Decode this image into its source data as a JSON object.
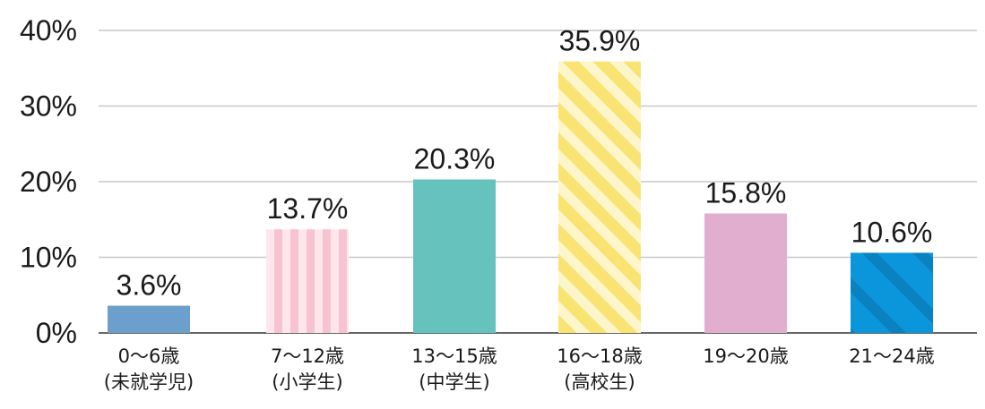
{
  "chart_data": {
    "type": "bar",
    "categories": [
      [
        "0〜6歳",
        "(未就学児)"
      ],
      [
        "7〜12歳",
        "(小学生)"
      ],
      [
        "13〜15歳",
        "(中学生)"
      ],
      [
        "16〜18歳",
        "(高校生)"
      ],
      [
        "19〜20歳"
      ],
      [
        "21〜24歳"
      ]
    ],
    "values": [
      3.6,
      13.7,
      20.3,
      35.9,
      15.8,
      10.6
    ],
    "value_labels": [
      "3.6%",
      "13.7%",
      "20.3%",
      "35.9%",
      "15.8%",
      "10.6%"
    ],
    "yticks": [
      "0%",
      "10%",
      "20%",
      "30%",
      "40%"
    ],
    "ylim": [
      0,
      40
    ],
    "grid": true,
    "title": "",
    "xlabel": "",
    "ylabel": "",
    "colors": {
      "bars": [
        "#6c9fcb",
        "#f8c3d0",
        "#66c2bd",
        "#f9e373",
        "#e2aed0",
        "#0b96dc"
      ],
      "bar_patterns": [
        "solid",
        "vertical-stripes",
        "solid",
        "diagonal-stripes",
        "solid",
        "diagonal-bands"
      ],
      "pattern_accents": [
        "",
        "#fde7ed",
        "",
        "#fdf6cb",
        "",
        "#0a82c2"
      ],
      "grid": "#c8c8c8",
      "axis": "#666666",
      "text": "#1a1a1a"
    }
  }
}
